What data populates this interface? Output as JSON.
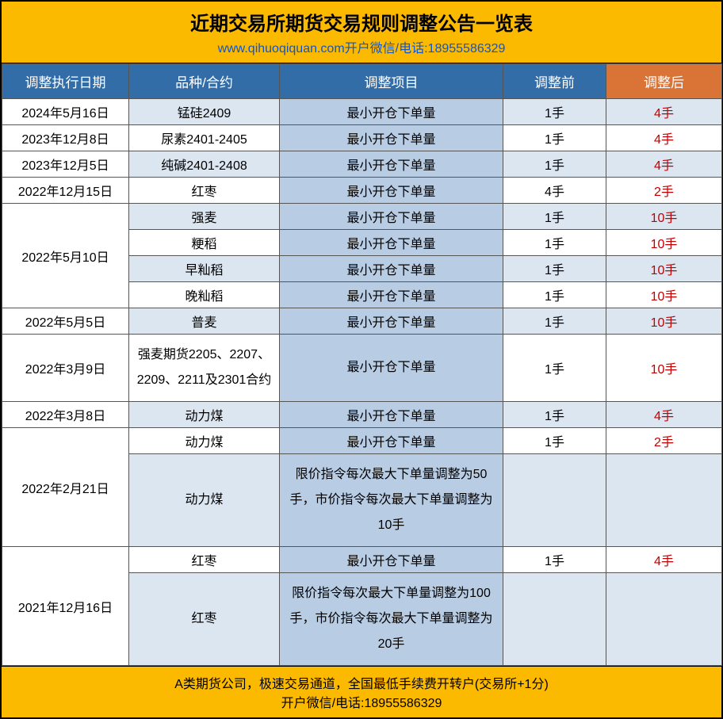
{
  "title": {
    "main": "近期交易所期货交易规则调整公告一览表",
    "sub": "www.qihuoqiquan.com开户微信/电话:18955586329"
  },
  "columns": {
    "widths": [
      160,
      190,
      260,
      130,
      130
    ],
    "date": "调整执行日期",
    "product": "品种/合约",
    "item": "调整项目",
    "before": "调整前",
    "after": "调整后"
  },
  "colors": {
    "header_blue": "#326da8",
    "header_orange": "#d97436",
    "item_bg": "#b8cce4",
    "zebra_light": "#ffffff",
    "zebra_dark": "#dce6f1",
    "title_bg": "#fbba00",
    "after_text": "#c00000",
    "link_text": "#1155cc"
  },
  "rows": [
    {
      "date": "2024年5月16日",
      "product": "锰硅2409",
      "item": "最小开仓下单量",
      "before": "1手",
      "after": "4手",
      "zebra": "b"
    },
    {
      "date": "2023年12月8日",
      "product": "尿素2401-2405",
      "item": "最小开仓下单量",
      "before": "1手",
      "after": "4手",
      "zebra": "a"
    },
    {
      "date": "2023年12月5日",
      "product": "纯碱2401-2408",
      "item": "最小开仓下单量",
      "before": "1手",
      "after": "4手",
      "zebra": "b"
    },
    {
      "date": "2022年12月15日",
      "product": "红枣",
      "item": "最小开仓下单量",
      "before": "4手",
      "after": "2手",
      "zebra": "a"
    },
    {
      "date": "2022年5月10日",
      "date_rowspan": 4,
      "product": "强麦",
      "item": "最小开仓下单量",
      "before": "1手",
      "after": "10手",
      "zebra": "b"
    },
    {
      "product": "粳稻",
      "item": "最小开仓下单量",
      "before": "1手",
      "after": "10手",
      "zebra": "a"
    },
    {
      "product": "早籼稻",
      "item": "最小开仓下单量",
      "before": "1手",
      "after": "10手",
      "zebra": "b"
    },
    {
      "product": "晚籼稻",
      "item": "最小开仓下单量",
      "before": "1手",
      "after": "10手",
      "zebra": "a"
    },
    {
      "date": "2022年5月5日",
      "product": "普麦",
      "item": "最小开仓下单量",
      "before": "1手",
      "after": "10手",
      "zebra": "b"
    },
    {
      "date": "2022年3月9日",
      "product": "强麦期货2205、2207、2209、2211及2301合约",
      "item": "最小开仓下单量",
      "before": "1手",
      "after": "10手",
      "zebra": "a",
      "tall": true
    },
    {
      "date": "2022年3月8日",
      "product": "动力煤",
      "item": "最小开仓下单量",
      "before": "1手",
      "after": "4手",
      "zebra": "b"
    },
    {
      "date": "2022年2月21日",
      "date_rowspan": 2,
      "product": "动力煤",
      "item": "最小开仓下单量",
      "before": "1手",
      "after": "2手",
      "zebra": "a"
    },
    {
      "product": "动力煤",
      "item": "限价指令每次最大下单量调整为50手，市价指令每次最大下单量调整为10手",
      "before": "",
      "after": "",
      "zebra": "b",
      "tall": true
    },
    {
      "date": "2021年12月16日",
      "date_rowspan": 2,
      "product": "红枣",
      "item": "最小开仓下单量",
      "before": "1手",
      "after": "4手",
      "zebra": "a"
    },
    {
      "product": "红枣",
      "item": "限价指令每次最大下单量调整为100手，市价指令每次最大下单量调整为20手",
      "before": "",
      "after": "",
      "zebra": "b",
      "tall": true
    }
  ],
  "footer": {
    "line1": "A类期货公司，极速交易通道，全国最低手续费开转户(交易所+1分)",
    "line2": "开户微信/电话:18955586329"
  }
}
